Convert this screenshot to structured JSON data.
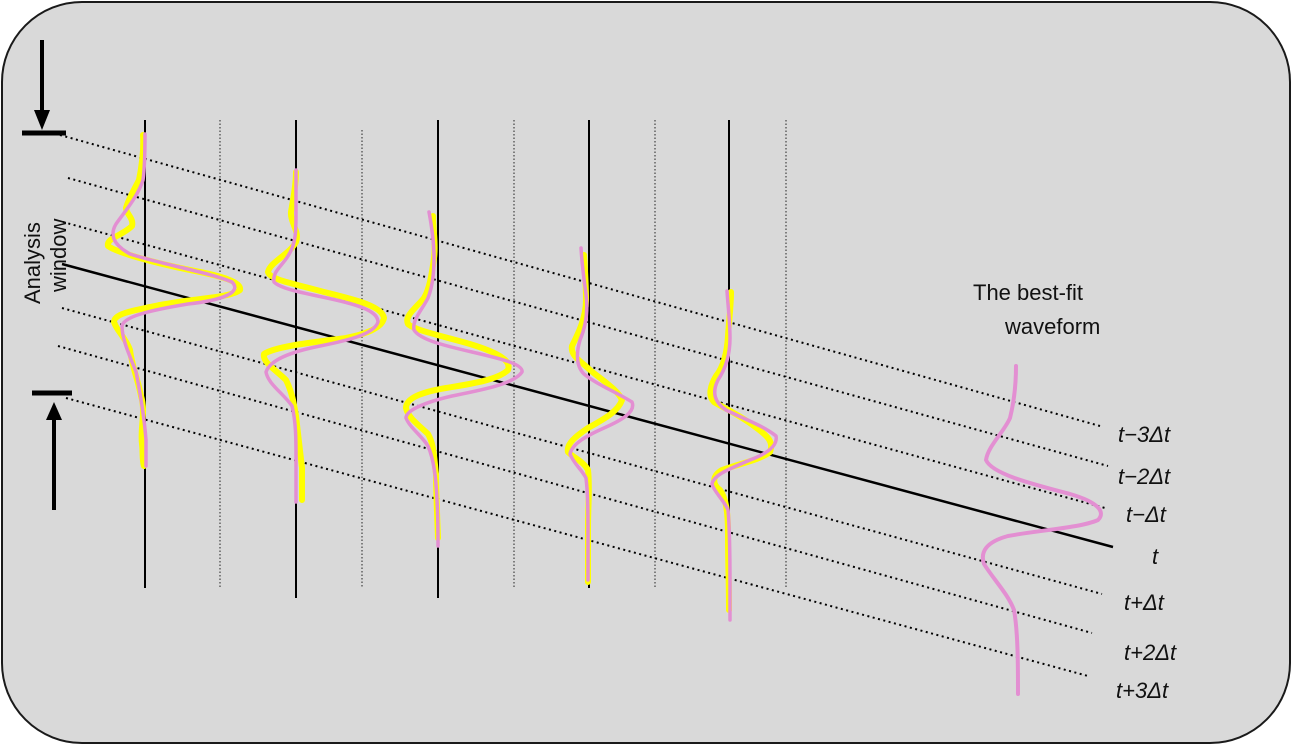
{
  "diagram": {
    "title_line1": "The best-fit",
    "title_line2": "waveform",
    "window_label_line1": "Analysis",
    "window_label_line2": "window",
    "time_labels": [
      "t−3Δt",
      "t−2Δt",
      "t−Δt",
      "t",
      "t+Δt",
      "t+2Δt",
      "t+3Δt"
    ]
  },
  "colors": {
    "background": "#d9d9d9",
    "border": "#1a1a1a",
    "trace_observed": "#ffff00",
    "trace_fit": "#e38fd2",
    "line": "#000000"
  }
}
